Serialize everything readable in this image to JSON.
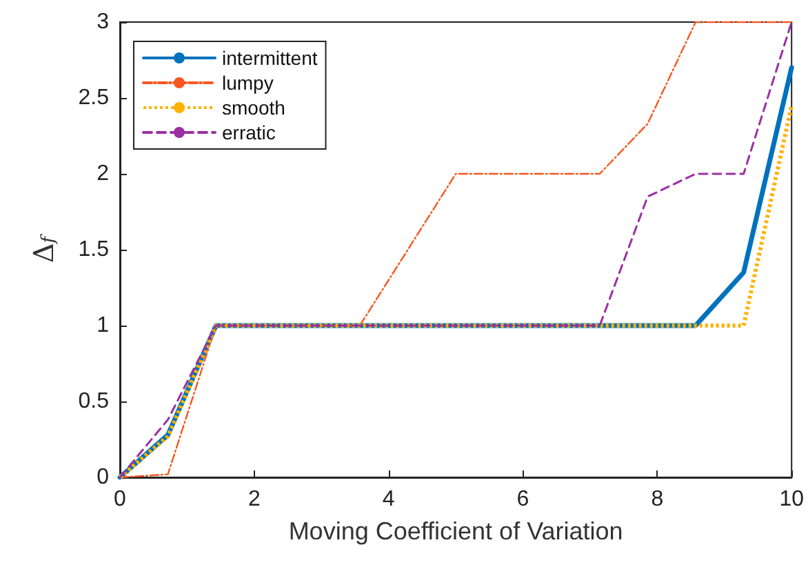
{
  "chart_data": {
    "type": "line",
    "xlabel": "Moving Coefficient of Variation",
    "ylabel": "Δ$_{f}$",
    "x": [
      0,
      0.714,
      1.429,
      2.143,
      2.857,
      3.571,
      4.286,
      5,
      5.714,
      6.429,
      7.143,
      7.857,
      8.571,
      9.286,
      10
    ],
    "series": [
      {
        "name": "intermittent",
        "color": "#0072bd",
        "line_style": "solid",
        "values": [
          0,
          0.28,
          1,
          1,
          1,
          1,
          1,
          1,
          1,
          1,
          1,
          1,
          1,
          1.35,
          2.7
        ]
      },
      {
        "name": "lumpy",
        "color": "#f8561f",
        "line_style": "dashdot",
        "values": [
          0,
          0.02,
          1,
          1,
          1,
          1,
          1.5,
          2,
          2,
          2,
          2,
          2.33,
          3,
          3,
          3
        ]
      },
      {
        "name": "smooth",
        "color": "#ffb100",
        "line_style": "dotted",
        "values": [
          0,
          0.27,
          1,
          1,
          1,
          1,
          1,
          1,
          1,
          1,
          1,
          1,
          1,
          1,
          2.45
        ]
      },
      {
        "name": "erratic",
        "color": "#9b2fa3",
        "line_style": "dashed",
        "values": [
          0,
          0.38,
          1,
          1,
          1,
          1,
          1,
          1,
          1,
          1,
          1,
          1.85,
          2,
          2,
          3
        ]
      }
    ],
    "xlim": [
      0,
      10
    ],
    "xticks": [
      0,
      2,
      4,
      6,
      8,
      10
    ],
    "ylim": [
      0,
      3
    ],
    "yticks": [
      0,
      0.5,
      1,
      1.5,
      2,
      2.5,
      3
    ],
    "grid": false,
    "legend": "top left",
    "marker": "none"
  }
}
